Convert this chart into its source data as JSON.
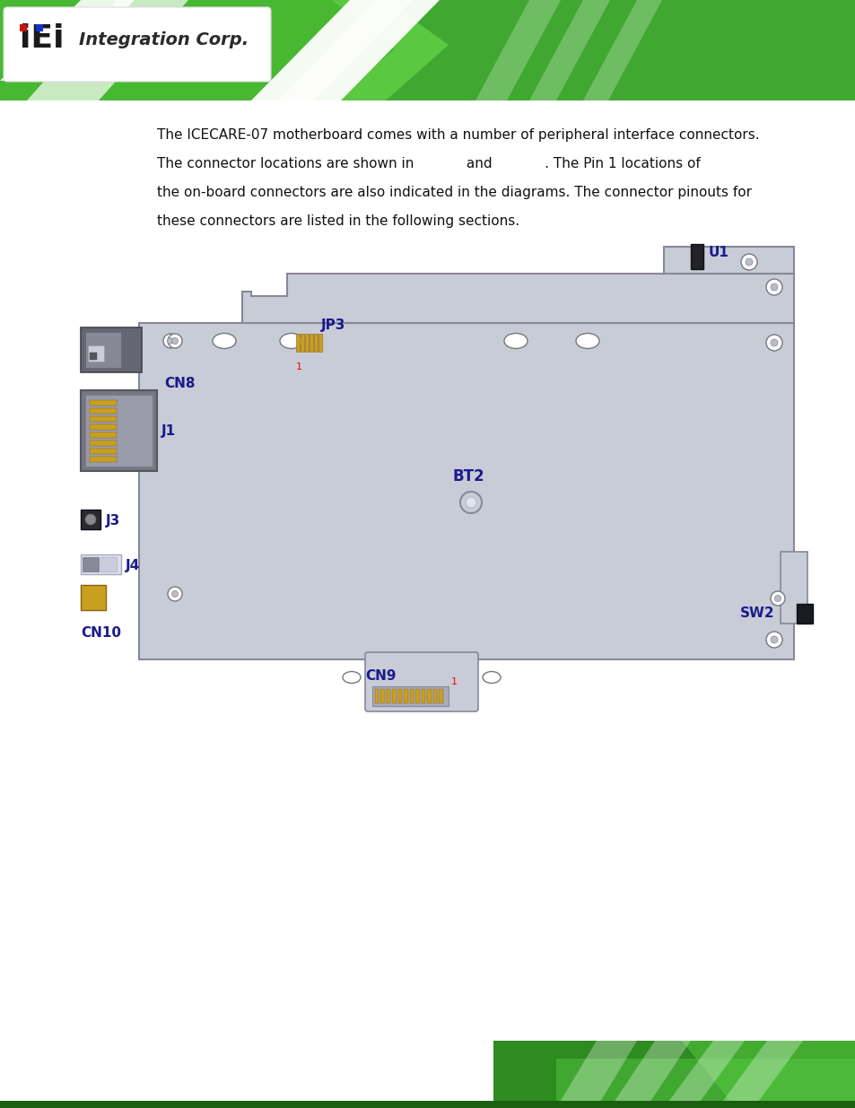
{
  "page_bg": "#ffffff",
  "text_line1": "The ICECARE-07 motherboard comes with a number of peripheral interface connectors.",
  "text_line2": "The connector locations are shown in            and            . The Pin 1 locations of",
  "text_line3": "the on-board connectors are also indicated in the diagrams. The connector pinouts for",
  "text_line4": "these connectors are listed in the following sections.",
  "board_label_color": "#1a1a8c",
  "board_fill": "#c8ccd6",
  "board_edge": "#888898",
  "connector_gold": "#c8a020",
  "label_font_size": 10,
  "text_font_size": 11,
  "header_green_dark": "#2e8b20",
  "header_green_mid": "#40a830",
  "header_green_light": "#58cc40",
  "header_white": "#ffffff",
  "footer_green_dark": "#2e8b20",
  "footer_green_mid": "#40a830"
}
